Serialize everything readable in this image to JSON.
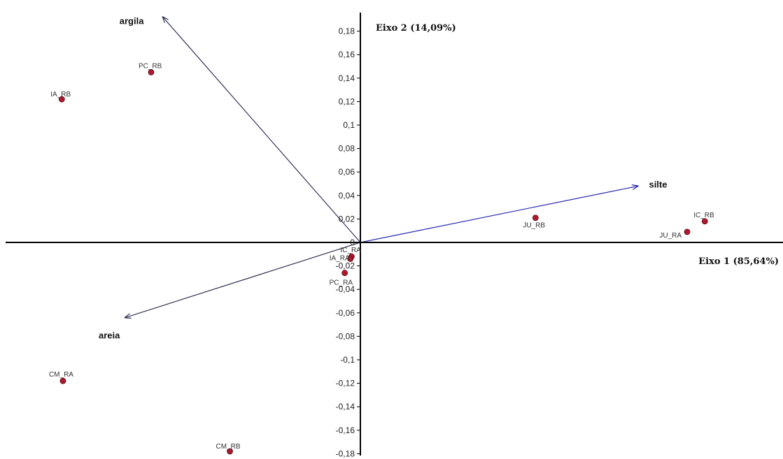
{
  "chart_data": {
    "type": "scatter",
    "title": "",
    "xlabel": "Eixo 1 (85,64%)",
    "ylabel": "Eixo 2 (14,09%)",
    "ylim": [
      -0.18,
      0.18
    ],
    "y_ticks": [
      "0,18",
      "0,16",
      "0,14",
      "0,12",
      "0,1",
      "0,08",
      "0,06",
      "0,04",
      "0,02",
      "0",
      "-0,02",
      "-0,04",
      "-0,06",
      "-0,08",
      "-0,1",
      "-0,12",
      "-0,14",
      "-0,16",
      "-0,18"
    ],
    "point_color": "#b0182e",
    "vector_color_left": "#333355",
    "vector_color_right": "#2a2ab0",
    "points": [
      {
        "label": "PC_RB",
        "x": -0.178,
        "y": 0.145
      },
      {
        "label": "IA_RB",
        "x": -0.254,
        "y": 0.122
      },
      {
        "label": "JU_RB",
        "x": 0.149,
        "y": 0.021
      },
      {
        "label": "IC_RB",
        "x": 0.293,
        "y": 0.018
      },
      {
        "label": "JU_RA",
        "x": 0.278,
        "y": 0.009
      },
      {
        "label": "IC_RA",
        "x": -0.0075,
        "y": -0.012
      },
      {
        "label": "IA_RA",
        "x": -0.0085,
        "y": -0.014
      },
      {
        "label": "PC_RA",
        "x": -0.0133,
        "y": -0.026
      },
      {
        "label": "CM_RA",
        "x": -0.253,
        "y": -0.118
      },
      {
        "label": "CM_RB",
        "x": -0.111,
        "y": -0.178
      }
    ],
    "vectors": [
      {
        "label": "argila",
        "x": -0.168,
        "y": 0.192
      },
      {
        "label": "silte",
        "x": 0.236,
        "y": 0.048
      },
      {
        "label": "areia",
        "x": -0.2,
        "y": -0.064
      }
    ]
  }
}
